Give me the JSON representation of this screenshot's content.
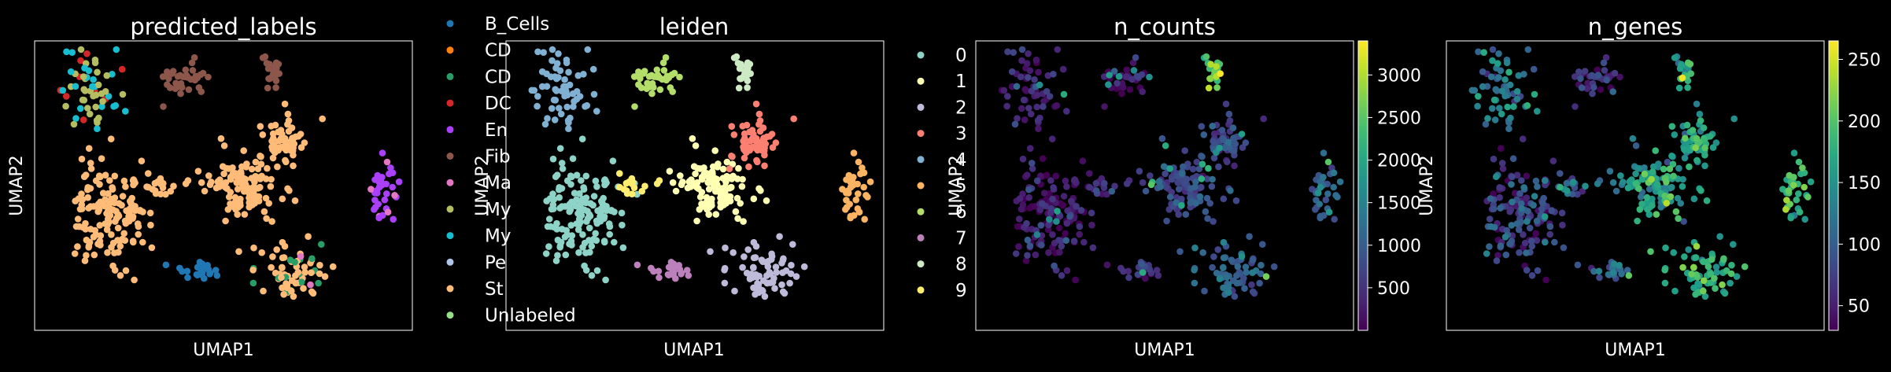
{
  "figure": {
    "background": "#000000",
    "foreground": "#ffffff"
  },
  "chart_data": [
    {
      "type": "scatter",
      "title": "predicted_labels",
      "xlabel": "UMAP1",
      "ylabel": "UMAP2",
      "color_mode": "categorical",
      "legend": {
        "placement": "right-outside",
        "entries": [
          {
            "label": "B_Cells",
            "color": "#1f77b4"
          },
          {
            "label": "CD",
            "color": "#ff7f0e"
          },
          {
            "label": "CD",
            "color": "#279e68"
          },
          {
            "label": "DC",
            "color": "#d62728"
          },
          {
            "label": "En",
            "color": "#aa40fc"
          },
          {
            "label": "Fib",
            "color": "#8c564b"
          },
          {
            "label": "Ma",
            "color": "#e377c2"
          },
          {
            "label": "My",
            "color": "#b5bd61"
          },
          {
            "label": "My",
            "color": "#17becf"
          },
          {
            "label": "Pe",
            "color": "#aec7e8"
          },
          {
            "label": "St",
            "color": "#ffbb78"
          },
          {
            "label": "Unlabeled",
            "color": "#98df8a"
          }
        ]
      }
    },
    {
      "type": "scatter",
      "title": "leiden",
      "xlabel": "UMAP1",
      "ylabel": "UMAP2",
      "color_mode": "categorical",
      "legend": {
        "placement": "right-outside",
        "entries": [
          {
            "label": "0",
            "color": "#8dd3c7"
          },
          {
            "label": "1",
            "color": "#ffffb3"
          },
          {
            "label": "2",
            "color": "#bebada"
          },
          {
            "label": "3",
            "color": "#fb8072"
          },
          {
            "label": "4",
            "color": "#80b1d3"
          },
          {
            "label": "5",
            "color": "#fdb462"
          },
          {
            "label": "6",
            "color": "#b3de69"
          },
          {
            "label": "7",
            "color": "#bc80bd"
          },
          {
            "label": "8",
            "color": "#ccebc5"
          },
          {
            "label": "9",
            "color": "#ffed6f"
          }
        ]
      }
    },
    {
      "type": "scatter",
      "title": "n_counts",
      "xlabel": "UMAP1",
      "ylabel": "UMAP2",
      "color_mode": "continuous",
      "colorbar": {
        "colormap": "viridis",
        "range": [
          0,
          3400
        ],
        "ticks": [
          500,
          1000,
          1500,
          2000,
          2500,
          3000
        ]
      }
    },
    {
      "type": "scatter",
      "title": "n_genes",
      "xlabel": "UMAP1",
      "ylabel": "UMAP2",
      "color_mode": "continuous",
      "colorbar": {
        "colormap": "viridis",
        "range": [
          30,
          265
        ],
        "ticks": [
          50,
          100,
          150,
          200,
          250
        ]
      }
    }
  ]
}
